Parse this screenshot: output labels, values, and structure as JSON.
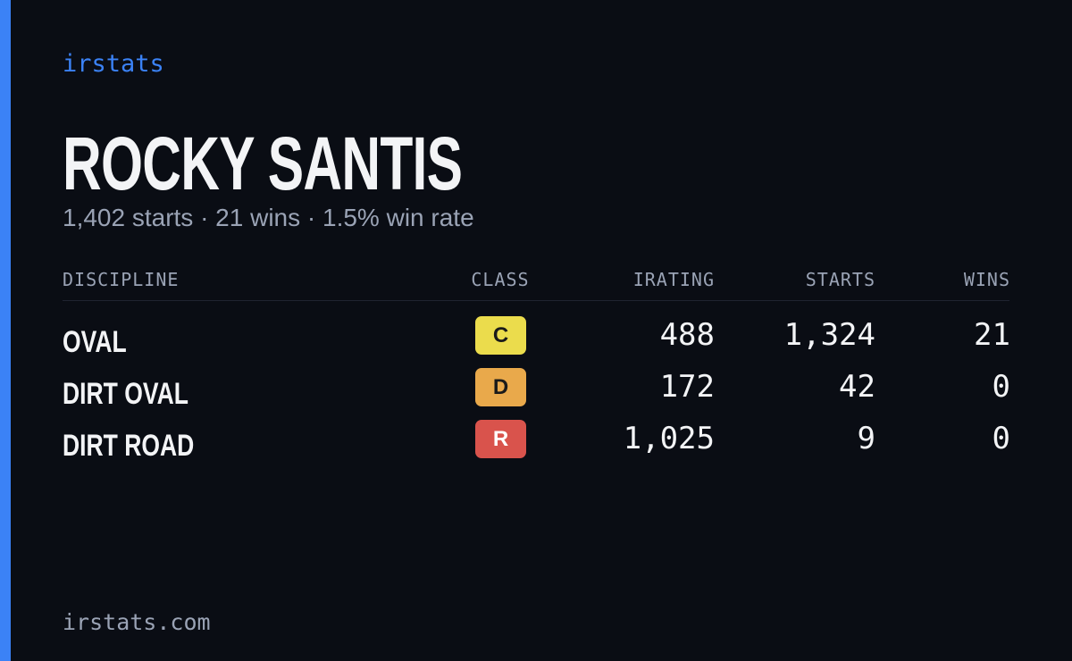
{
  "brand": "irstats",
  "driver": {
    "name": "ROCKY SANTIS",
    "summary": "1,402 starts · 21 wins · 1.5% win rate"
  },
  "table": {
    "headers": [
      "DISCIPLINE",
      "CLASS",
      "IRATING",
      "STARTS",
      "WINS"
    ],
    "rows": [
      [
        "OVAL",
        "C",
        "488",
        "1,324",
        "21"
      ],
      [
        "DIRT OVAL",
        "D",
        "172",
        "42",
        "0"
      ],
      [
        "DIRT ROAD",
        "R",
        "1,025",
        "9",
        "0"
      ]
    ],
    "class_colors": {
      "C": "#ebdc4c",
      "D": "#e9a94b",
      "R": "#d9534c"
    }
  },
  "footer": "irstats.com"
}
